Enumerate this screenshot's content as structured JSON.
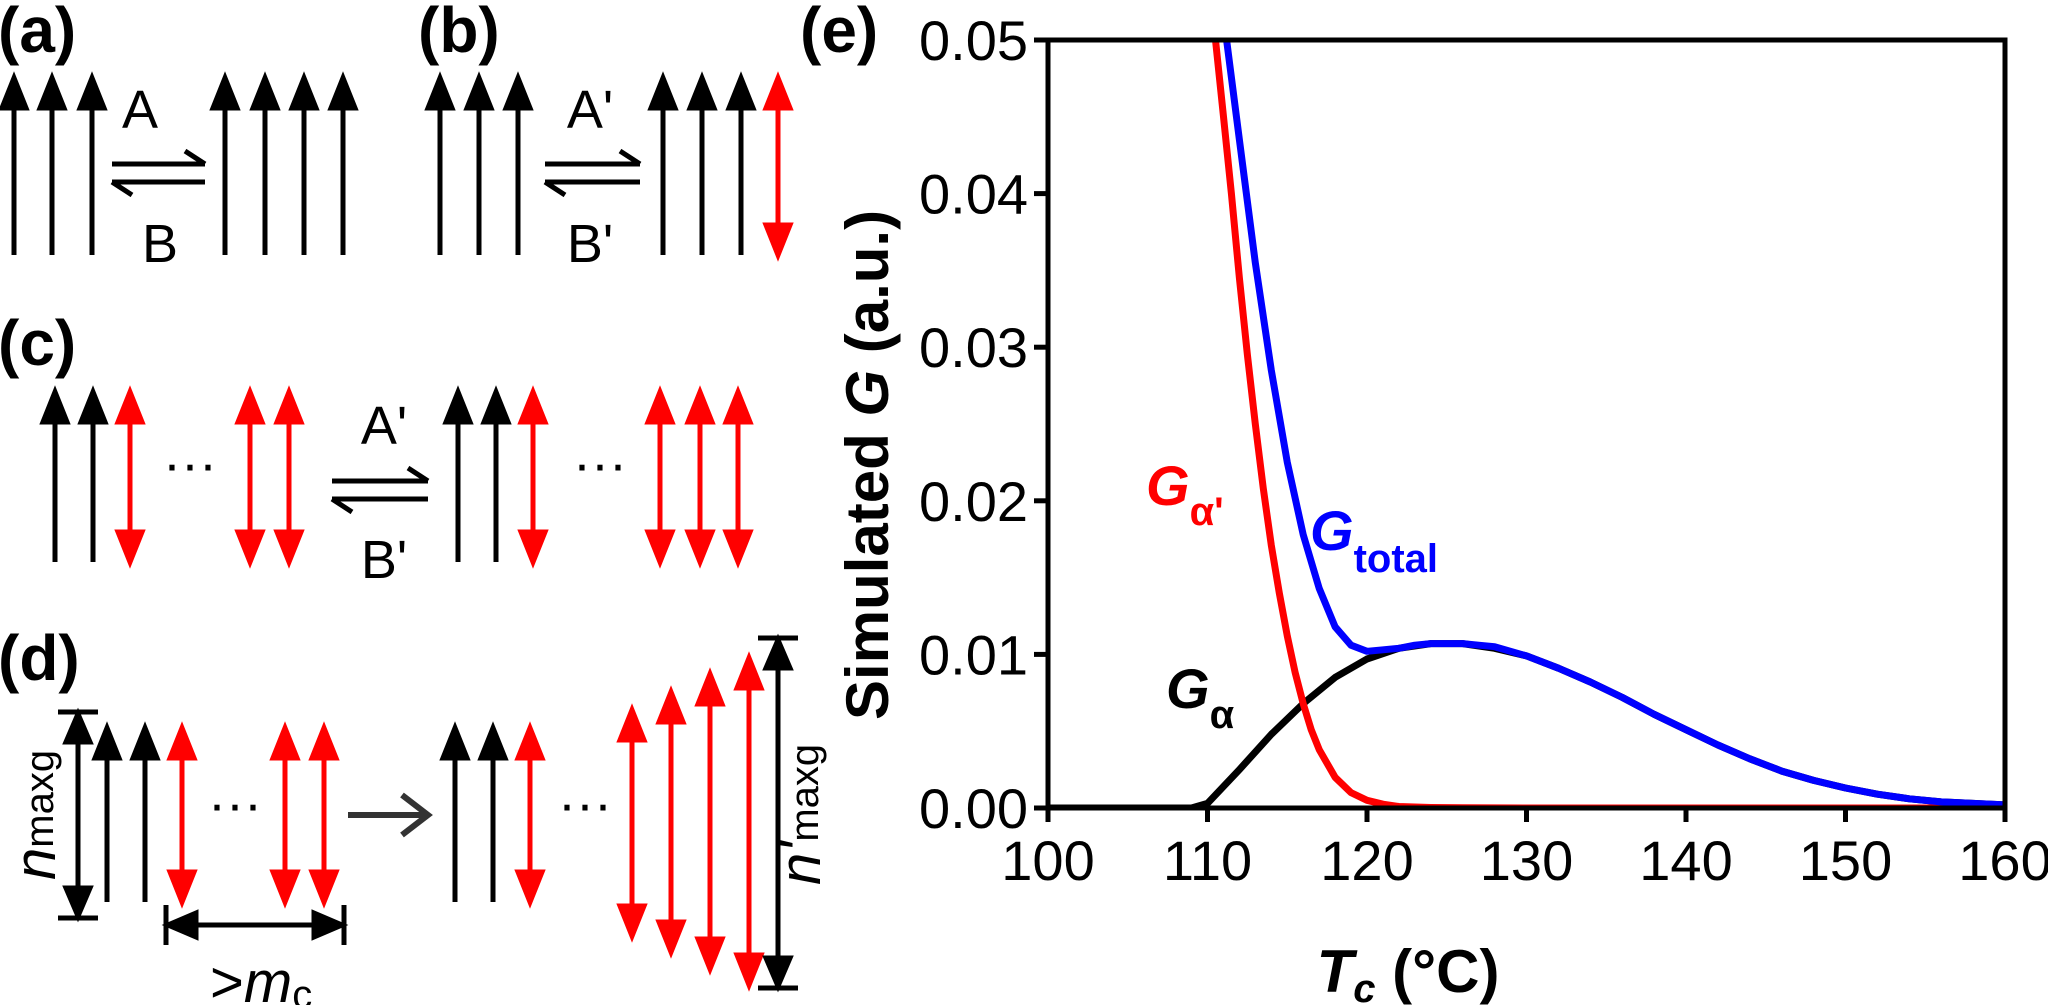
{
  "panels": {
    "a": {
      "label": "(a)",
      "top": "A",
      "bottom": "B"
    },
    "b": {
      "label": "(b)",
      "top": "A'",
      "bottom": "B'"
    },
    "c": {
      "label": "(c)",
      "top": "A'",
      "bottom": "B'",
      "ellipsis": "···"
    },
    "d": {
      "label": "(d)",
      "ellipsis": "···",
      "n_letter": "n",
      "n_sub": "maxg",
      "n_prime_letter": "n'",
      "n_prime_sub": "maxg",
      "m_prefix": ">",
      "m_letter": "m",
      "m_sub": "c"
    },
    "e": {
      "label": "(e)"
    }
  },
  "colors": {
    "black": "#000000",
    "red": "#ff0000",
    "blue": "#0000ff",
    "gray": "#333333"
  },
  "chart_data": {
    "type": "line",
    "title": "",
    "xlabel": "T_c (°C)",
    "xlabel_letter": "T",
    "xlabel_sub": "c",
    "xlabel_unit": " (°C)",
    "ylabel_prefix": "Simulated ",
    "ylabel_letter": "G",
    "ylabel_suffix": " (a.u.)",
    "xlim": [
      100,
      160
    ],
    "ylim": [
      0,
      0.05
    ],
    "x_ticks": [
      100,
      110,
      120,
      130,
      140,
      150,
      160
    ],
    "y_ticks": [
      "0.00",
      "0.01",
      "0.02",
      "0.03",
      "0.04",
      "0.05"
    ],
    "series": [
      {
        "name": "G_alpha",
        "label_main": "G",
        "label_sub": "α",
        "color": "#000000",
        "x": [
          100,
          109,
          110,
          112,
          114,
          116,
          118,
          120,
          122,
          124,
          125,
          126,
          128,
          130,
          132,
          134,
          136,
          138,
          140,
          142,
          144,
          146,
          148,
          150,
          152,
          154,
          156,
          158,
          160
        ],
        "y": [
          0,
          0,
          0.0003,
          0.0025,
          0.0048,
          0.0068,
          0.0085,
          0.0097,
          0.0104,
          0.0107,
          0.0107,
          0.0107,
          0.0104,
          0.0099,
          0.0091,
          0.0082,
          0.0072,
          0.0061,
          0.0051,
          0.0041,
          0.0032,
          0.0024,
          0.0018,
          0.0013,
          0.0009,
          0.0006,
          0.0004,
          0.0003,
          0.0002
        ]
      },
      {
        "name": "G_alpha_prime",
        "label_main": "G",
        "label_sub": "α'",
        "color": "#ff0000",
        "x": [
          110.5,
          111,
          111.5,
          112,
          112.5,
          113,
          113.5,
          114,
          114.5,
          115,
          115.5,
          116,
          116.5,
          117,
          118,
          119,
          120,
          121,
          122,
          124,
          126,
          130,
          140,
          150,
          160
        ],
        "y": [
          0.05,
          0.045,
          0.04,
          0.0345,
          0.0295,
          0.025,
          0.0208,
          0.0171,
          0.014,
          0.0112,
          0.0088,
          0.0068,
          0.0051,
          0.0038,
          0.002,
          0.001,
          0.0005,
          0.00025,
          0.0001,
          3e-05,
          1e-05,
          0,
          0,
          0,
          0
        ]
      },
      {
        "name": "G_total",
        "label_main": "G",
        "label_sub": "total",
        "color": "#0000ff",
        "x": [
          111.2,
          112,
          113,
          114,
          115,
          116,
          117,
          118,
          119,
          120,
          121,
          122,
          123,
          124,
          125,
          126,
          127,
          128,
          130,
          132,
          134,
          136,
          138,
          140,
          142,
          144,
          146,
          148,
          150,
          152,
          154,
          156,
          158,
          160
        ],
        "y": [
          0.05,
          0.0435,
          0.0355,
          0.0285,
          0.0225,
          0.0178,
          0.0143,
          0.0118,
          0.0106,
          0.0102,
          0.0103,
          0.0104,
          0.0106,
          0.0107,
          0.0107,
          0.0107,
          0.0106,
          0.0105,
          0.0099,
          0.0091,
          0.0082,
          0.0072,
          0.0061,
          0.0051,
          0.0041,
          0.0032,
          0.0024,
          0.0018,
          0.0013,
          0.0009,
          0.0006,
          0.0004,
          0.0003,
          0.0002
        ]
      }
    ]
  }
}
